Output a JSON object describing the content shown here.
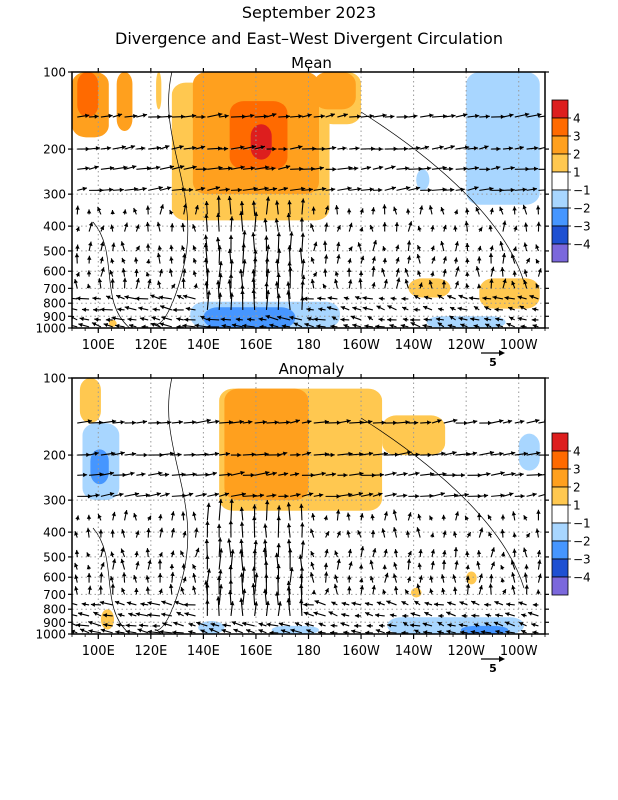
{
  "title": "September 2023",
  "subtitle": "Divergence and East–West Divergent Circulation",
  "chart_data": [
    {
      "type": "heatmap",
      "panel_title": "Mean",
      "x_ticks": [
        "100E",
        "120E",
        "140E",
        "160E",
        "180",
        "160W",
        "140W",
        "120W",
        "100W"
      ],
      "x_tick_lon": [
        100,
        120,
        140,
        160,
        180,
        200,
        220,
        240,
        260
      ],
      "xlim_lon": [
        90,
        270
      ],
      "y_ticks": [
        "100",
        "200",
        "300",
        "400",
        "500",
        "600",
        "700",
        "800",
        "900",
        "1000"
      ],
      "y_tick_values": [
        100,
        200,
        300,
        400,
        500,
        600,
        700,
        800,
        900,
        1000
      ],
      "ylim": [
        1000,
        100
      ],
      "y_scale": "log",
      "grid": true,
      "vector_reference": "5",
      "fill_regions": [
        {
          "level": 2,
          "lon": [
            90,
            104
          ],
          "p": [
            100,
            180
          ]
        },
        {
          "level": 3,
          "lon": [
            92,
            100
          ],
          "p": [
            100,
            150
          ]
        },
        {
          "level": 2,
          "lon": [
            107,
            113
          ],
          "p": [
            100,
            170
          ]
        },
        {
          "level": 1,
          "lon": [
            122,
            124
          ],
          "p": [
            100,
            140
          ]
        },
        {
          "level": 1,
          "lon": [
            128,
            188
          ],
          "p": [
            110,
            380
          ]
        },
        {
          "level": 2,
          "lon": [
            136,
            184
          ],
          "p": [
            100,
            300
          ]
        },
        {
          "level": 3,
          "lon": [
            150,
            172
          ],
          "p": [
            130,
            240
          ]
        },
        {
          "level": 4,
          "lon": [
            158,
            166
          ],
          "p": [
            160,
            220
          ]
        },
        {
          "level": 1,
          "lon": [
            184,
            200
          ],
          "p": [
            100,
            160
          ]
        },
        {
          "level": 2,
          "lon": [
            182,
            198
          ],
          "p": [
            100,
            140
          ]
        },
        {
          "level": -1,
          "lon": [
            240,
            268
          ],
          "p": [
            100,
            330
          ]
        },
        {
          "level": -1,
          "lon": [
            221,
            226
          ],
          "p": [
            240,
            290
          ]
        },
        {
          "level": 1,
          "lon": [
            218,
            234
          ],
          "p": [
            640,
            760
          ]
        },
        {
          "level": 1,
          "lon": [
            245,
            268
          ],
          "p": [
            640,
            840
          ]
        },
        {
          "level": -1,
          "lon": [
            135,
            192
          ],
          "p": [
            790,
            1000
          ]
        },
        {
          "level": -2,
          "lon": [
            140,
            175
          ],
          "p": [
            830,
            1000
          ]
        },
        {
          "level": -1,
          "lon": [
            225,
            255
          ],
          "p": [
            900,
            1000
          ]
        },
        {
          "level": 1,
          "lon": [
            104,
            107
          ],
          "p": [
            930,
            990
          ]
        }
      ]
    },
    {
      "type": "heatmap",
      "panel_title": "Anomaly",
      "x_ticks": [
        "100E",
        "120E",
        "140E",
        "160E",
        "180",
        "160W",
        "140W",
        "120W",
        "100W"
      ],
      "x_tick_lon": [
        100,
        120,
        140,
        160,
        180,
        200,
        220,
        240,
        260
      ],
      "xlim_lon": [
        90,
        270
      ],
      "y_ticks": [
        "100",
        "200",
        "300",
        "400",
        "500",
        "600",
        "700",
        "800",
        "900",
        "1000"
      ],
      "y_tick_values": [
        100,
        200,
        300,
        400,
        500,
        600,
        700,
        800,
        900,
        1000
      ],
      "ylim": [
        1000,
        100
      ],
      "y_scale": "log",
      "grid": true,
      "vector_reference": "5",
      "fill_regions": [
        {
          "level": 1,
          "lon": [
            93,
            101
          ],
          "p": [
            100,
            150
          ]
        },
        {
          "level": -1,
          "lon": [
            94,
            108
          ],
          "p": [
            150,
            300
          ]
        },
        {
          "level": -2,
          "lon": [
            97,
            104
          ],
          "p": [
            190,
            260
          ]
        },
        {
          "level": 1,
          "lon": [
            146,
            208
          ],
          "p": [
            110,
            330
          ]
        },
        {
          "level": 2,
          "lon": [
            148,
            180
          ],
          "p": [
            110,
            300
          ]
        },
        {
          "level": 1,
          "lon": [
            208,
            232
          ],
          "p": [
            140,
            200
          ]
        },
        {
          "level": -1,
          "lon": [
            260,
            268
          ],
          "p": [
            165,
            230
          ]
        },
        {
          "level": 1,
          "lon": [
            101,
            106
          ],
          "p": [
            800,
            960
          ]
        },
        {
          "level": 1,
          "lon": [
            240,
            244
          ],
          "p": [
            570,
            640
          ]
        },
        {
          "level": 1,
          "lon": [
            219,
            223
          ],
          "p": [
            660,
            720
          ]
        },
        {
          "level": -1,
          "lon": [
            138,
            148
          ],
          "p": [
            890,
            1000
          ]
        },
        {
          "level": -1,
          "lon": [
            166,
            184
          ],
          "p": [
            930,
            1000
          ]
        },
        {
          "level": -1,
          "lon": [
            210,
            262
          ],
          "p": [
            860,
            1000
          ]
        },
        {
          "level": -2,
          "lon": [
            238,
            256
          ],
          "p": [
            930,
            1000
          ]
        }
      ]
    }
  ],
  "colorbar": {
    "levels": [
      4,
      3,
      2,
      1,
      0,
      -1,
      -2,
      -3,
      -4
    ],
    "labels": [
      "4",
      "3",
      "2",
      "1",
      "−1",
      "−2",
      "−3",
      "−4"
    ],
    "colors": [
      "#dd1e1e",
      "#ff6a00",
      "#ffa01e",
      "#ffc850",
      "#ffffff",
      "#a8d6ff",
      "#4696ff",
      "#1e50d2",
      "#7b68dc"
    ]
  }
}
